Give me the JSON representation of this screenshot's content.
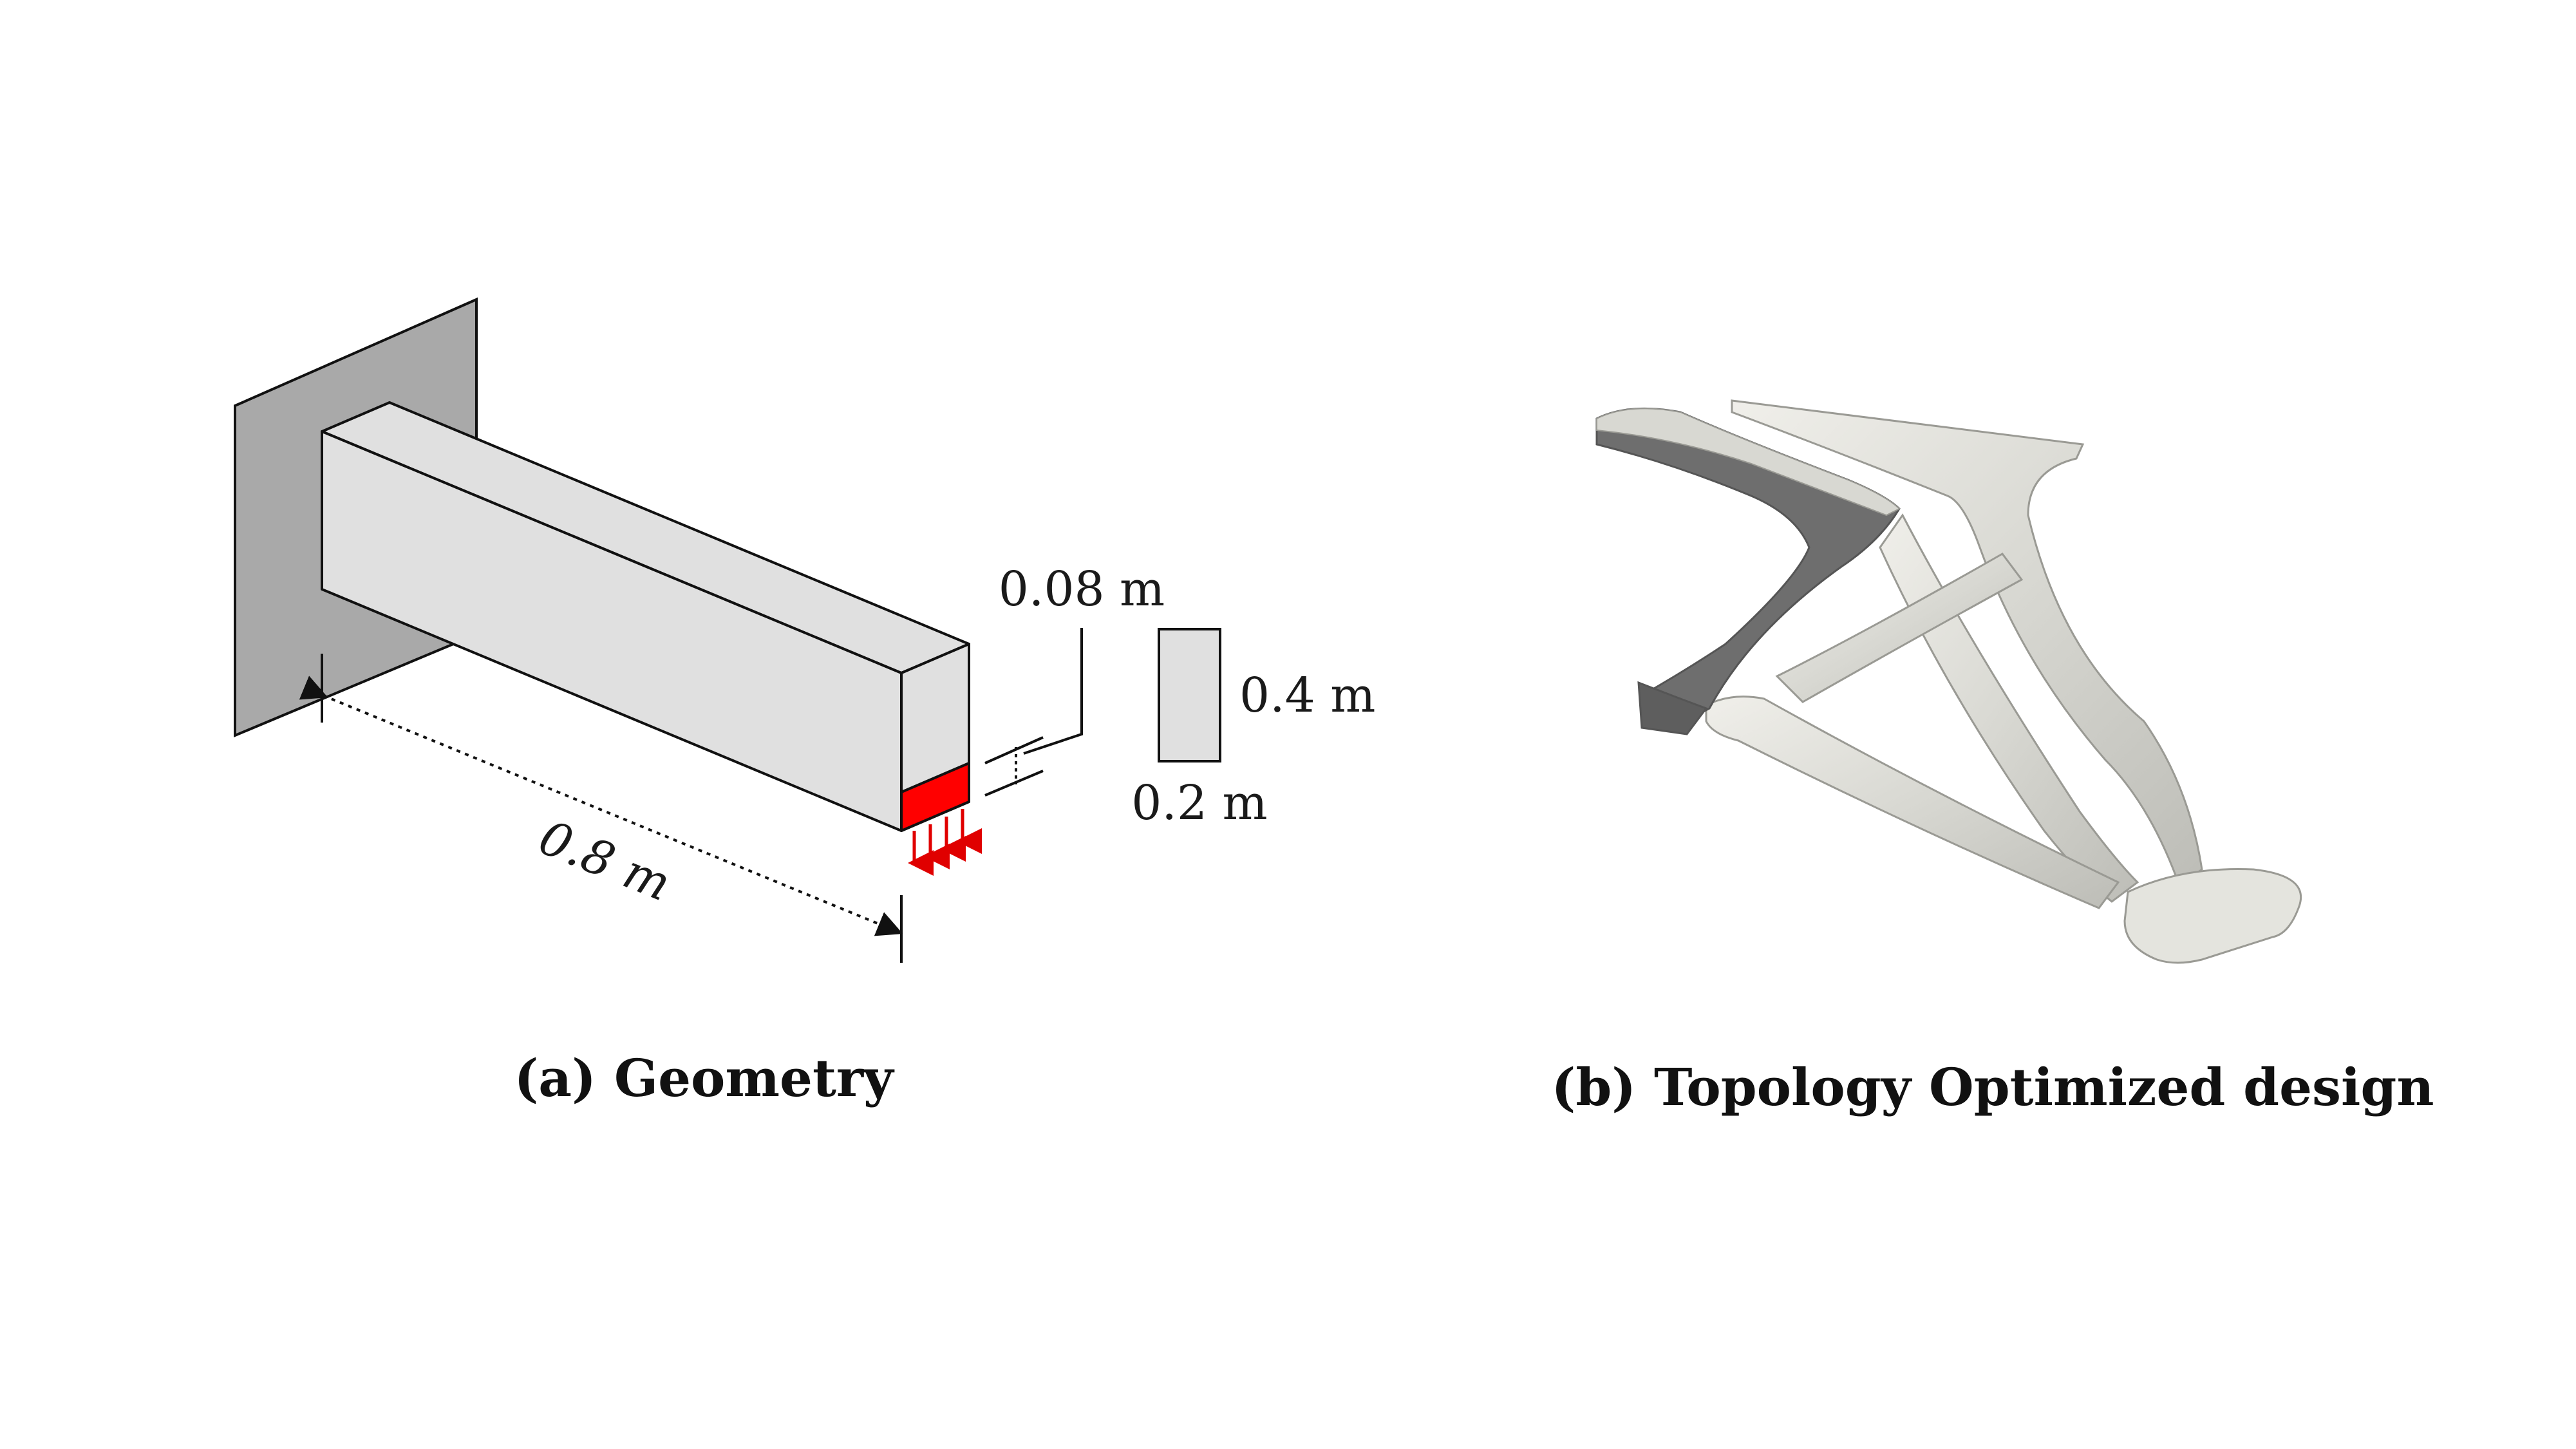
{
  "panel_a": {
    "caption": "(a) Geometry",
    "length_label": "0.8 m",
    "load_zone_label": "0.08 m",
    "height_label": "0.4 m",
    "width_label": "0.2 m"
  },
  "panel_b": {
    "caption": "(b) Topology Optimized design"
  },
  "colors": {
    "wall": "#a9a9a9",
    "beam": "#e0e0e0",
    "load": "#ff0000",
    "design_dark": "#6e6e6e",
    "design_light": "#e2e2dc"
  }
}
